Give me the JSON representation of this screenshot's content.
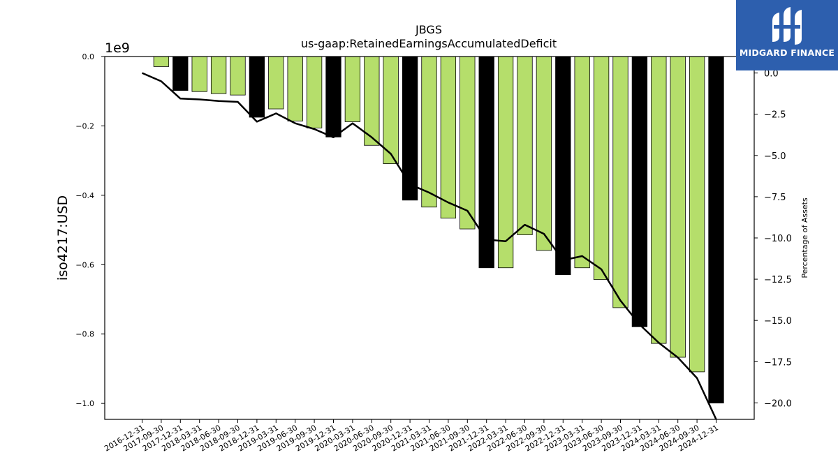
{
  "chart_data": {
    "type": "bar",
    "title": "JBGS",
    "subtitle": "us-gaap:RetainedEarningsAccumulatedDeficit",
    "ylabel": "iso4217:USD",
    "y_offset_label": "1e9",
    "y2label": "Percentage of Assets",
    "ylim": [
      -1.046,
      0.0
    ],
    "y2lim": [
      -21.0,
      1.0
    ],
    "yticks": [
      0.0,
      -0.2,
      -0.4,
      -0.6,
      -0.8,
      -1.0
    ],
    "ytick_labels": [
      "0.0",
      "−0.2",
      "−0.4",
      "−0.6",
      "−0.8",
      "−1.0"
    ],
    "y2ticks": [
      0.0,
      -2.5,
      -5.0,
      -7.5,
      -10.0,
      -12.5,
      -15.0,
      -17.5,
      -20.0
    ],
    "y2tick_labels": [
      "0.0",
      "−2.5",
      "−5.0",
      "−7.5",
      "−10.0",
      "−12.5",
      "−15.0",
      "−17.5",
      "−20.0"
    ],
    "categories": [
      "2016-12-31",
      "2017-09-30",
      "2017-12-31",
      "2018-03-31",
      "2018-06-30",
      "2018-09-30",
      "2018-12-31",
      "2019-03-31",
      "2019-06-30",
      "2019-09-30",
      "2019-12-31",
      "2020-03-31",
      "2020-06-30",
      "2020-09-30",
      "2020-12-31",
      "2021-03-31",
      "2021-06-30",
      "2021-09-30",
      "2021-12-31",
      "2022-03-31",
      "2022-06-30",
      "2022-09-30",
      "2022-12-31",
      "2023-03-31",
      "2023-06-30",
      "2023-09-30",
      "2023-12-31",
      "2024-03-31",
      "2024-06-30",
      "2024-09-30",
      "2024-12-31"
    ],
    "values": [
      0.0,
      -0.029,
      -0.098,
      -0.101,
      -0.107,
      -0.111,
      -0.175,
      -0.151,
      -0.186,
      -0.206,
      -0.232,
      -0.188,
      -0.256,
      -0.309,
      -0.414,
      -0.434,
      -0.466,
      -0.497,
      -0.609,
      -0.609,
      -0.514,
      -0.559,
      -0.629,
      -0.609,
      -0.643,
      -0.724,
      -0.779,
      -0.827,
      -0.867,
      -0.909,
      -0.999
    ],
    "annual_flags": [
      true,
      false,
      true,
      false,
      false,
      false,
      true,
      false,
      false,
      false,
      true,
      false,
      false,
      false,
      true,
      false,
      false,
      false,
      true,
      false,
      false,
      false,
      true,
      false,
      false,
      false,
      true,
      false,
      false,
      false,
      true
    ],
    "pct_of_assets": [
      0.0,
      -0.5,
      -1.55,
      -1.6,
      -1.7,
      -1.75,
      -2.95,
      -2.45,
      -3.05,
      -3.4,
      -3.9,
      -3.05,
      -3.9,
      -4.9,
      -6.75,
      -7.25,
      -7.85,
      -8.35,
      -10.1,
      -10.2,
      -9.2,
      -9.75,
      -11.35,
      -11.1,
      -11.9,
      -13.8,
      -15.25,
      -16.35,
      -17.25,
      -18.5,
      -21.0
    ],
    "colors": {
      "quarterly_bar": "#b5de6b",
      "annual_bar": "#000000",
      "line": "#000000"
    }
  },
  "logo": {
    "text": "MIDGARD FINANCE",
    "bg_color": "#2d5fae"
  }
}
